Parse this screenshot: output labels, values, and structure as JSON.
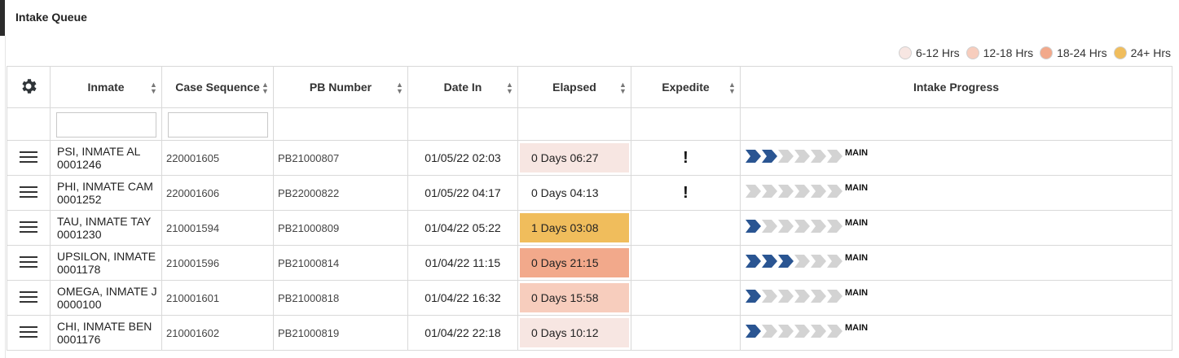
{
  "panel": {
    "title": "Intake Queue"
  },
  "legend": [
    {
      "label": "6-12 Hrs",
      "color": "#f7e6e2"
    },
    {
      "label": "12-18 Hrs",
      "color": "#f7cdbd"
    },
    {
      "label": "18-24 Hrs",
      "color": "#f2a98b"
    },
    {
      "label": "24+ Hrs",
      "color": "#f0bd5c"
    }
  ],
  "columns": {
    "settings_icon": "gear-icon",
    "inmate": "Inmate",
    "case_sequence": "Case Sequence",
    "pb_number": "PB Number",
    "date_in": "Date In",
    "elapsed": "Elapsed",
    "expedite": "Expedite",
    "intake_progress": "Intake Progress"
  },
  "filters": {
    "inmate": "",
    "case_sequence": ""
  },
  "colors": {
    "progress_done": "#2a5592",
    "progress_pending": "#d3d3d3"
  },
  "rows": [
    {
      "inmate_name": "PSI, INMATE AL",
      "inmate_id": "0001246",
      "case_sequence": "220001605",
      "pb_number": "PB21000807",
      "date_in": "01/05/22 02:03",
      "elapsed": "0 Days 06:27",
      "elapsed_color": "#f7e6e2",
      "expedite": "!",
      "progress_done": 2,
      "progress_total": 6,
      "progress_label": "MAIN"
    },
    {
      "inmate_name": "PHI, INMATE CAM",
      "inmate_id": "0001252",
      "case_sequence": "220001606",
      "pb_number": "PB22000822",
      "date_in": "01/05/22 04:17",
      "elapsed": "0 Days 04:13",
      "elapsed_color": "#ffffff",
      "expedite": "!",
      "progress_done": 0,
      "progress_total": 6,
      "progress_label": "MAIN"
    },
    {
      "inmate_name": "TAU, INMATE TAY",
      "inmate_id": "0001230",
      "case_sequence": "210001594",
      "pb_number": "PB21000809",
      "date_in": "01/04/22 05:22",
      "elapsed": "1 Days 03:08",
      "elapsed_color": "#f0bd5c",
      "expedite": "",
      "progress_done": 1,
      "progress_total": 6,
      "progress_label": "MAIN"
    },
    {
      "inmate_name": "UPSILON, INMATE",
      "inmate_id": "0001178",
      "case_sequence": "210001596",
      "pb_number": "PB21000814",
      "date_in": "01/04/22 11:15",
      "elapsed": "0 Days 21:15",
      "elapsed_color": "#f2a98b",
      "expedite": "",
      "progress_done": 3,
      "progress_total": 6,
      "progress_label": "MAIN"
    },
    {
      "inmate_name": "OMEGA, INMATE J",
      "inmate_id": "0000100",
      "case_sequence": "210001601",
      "pb_number": "PB21000818",
      "date_in": "01/04/22 16:32",
      "elapsed": "0 Days 15:58",
      "elapsed_color": "#f7cdbd",
      "expedite": "",
      "progress_done": 1,
      "progress_total": 6,
      "progress_label": "MAIN"
    },
    {
      "inmate_name": "CHI, INMATE BEN",
      "inmate_id": "0001176",
      "case_sequence": "210001602",
      "pb_number": "PB21000819",
      "date_in": "01/04/22 22:18",
      "elapsed": "0 Days 10:12",
      "elapsed_color": "#f7e6e2",
      "expedite": "",
      "progress_done": 1,
      "progress_total": 6,
      "progress_label": "MAIN"
    }
  ]
}
